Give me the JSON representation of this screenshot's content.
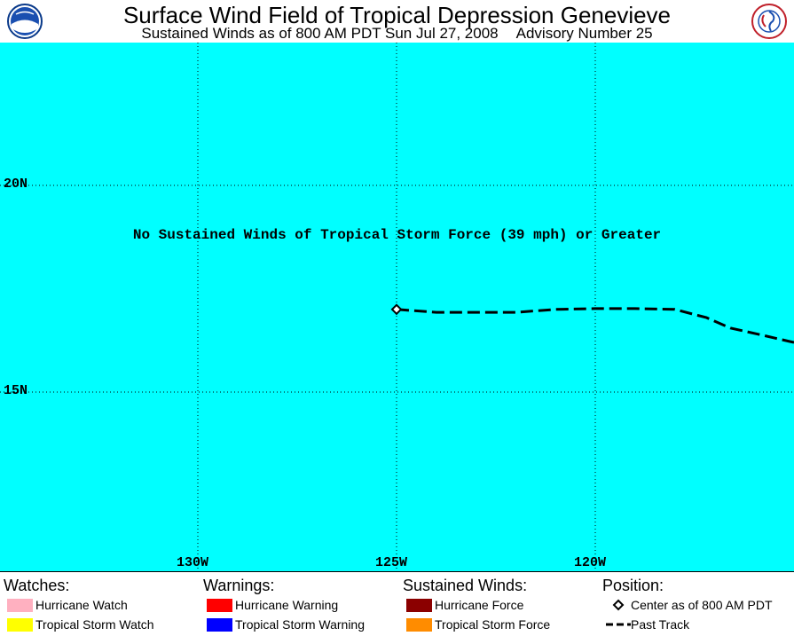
{
  "header": {
    "title": "Surface Wind Field of Tropical Depression Genevieve",
    "subtitle_left": "Sustained Winds as of 800 AM PDT Sun Jul 27, 2008",
    "subtitle_right": "Advisory Number 25",
    "logo_left": "noaa-logo-icon",
    "logo_right": "national-weather-service-logo-icon"
  },
  "map": {
    "ocean_color": "#00ffff",
    "lat_labels": [
      "20N",
      "15N"
    ],
    "lon_labels": [
      "130W",
      "125W",
      "120W"
    ],
    "notice": "No Sustained Winds of Tropical Storm Force (39 mph) or Greater",
    "center_marker": "diamond-icon",
    "storm_center": {
      "lon": -125.0,
      "lat": 17.0
    },
    "past_track": [
      {
        "lon": -125.0,
        "lat": 17.0
      },
      {
        "lon": -124.0,
        "lat": 16.93
      },
      {
        "lon": -123.0,
        "lat": 16.93
      },
      {
        "lon": -122.0,
        "lat": 16.93
      },
      {
        "lon": -121.0,
        "lat": 17.0
      },
      {
        "lon": -120.0,
        "lat": 17.02
      },
      {
        "lon": -119.0,
        "lat": 17.02
      },
      {
        "lon": -118.0,
        "lat": 17.0
      },
      {
        "lon": -117.2,
        "lat": 16.8
      },
      {
        "lon": -116.6,
        "lat": 16.55
      },
      {
        "lon": -115.9,
        "lat": 16.4
      },
      {
        "lon": -115.0,
        "lat": 16.2
      }
    ]
  },
  "legend": {
    "watches": {
      "heading": "Watches:",
      "items": [
        {
          "label": "Hurricane Watch",
          "color": "#ffb0c0"
        },
        {
          "label": "Tropical Storm Watch",
          "color": "#ffff00"
        }
      ]
    },
    "warnings": {
      "heading": "Warnings:",
      "items": [
        {
          "label": "Hurricane Warning",
          "color": "#ff0000"
        },
        {
          "label": "Tropical Storm Warning",
          "color": "#0000ff"
        }
      ]
    },
    "winds": {
      "heading": "Sustained Winds:",
      "items": [
        {
          "label": "Hurricane Force",
          "color": "#8b0000"
        },
        {
          "label": "Tropical Storm Force",
          "color": "#ff8c00"
        }
      ]
    },
    "position": {
      "heading": "Position:",
      "center_label": "Center as of 800 AM PDT",
      "track_label": "Past Track"
    }
  }
}
